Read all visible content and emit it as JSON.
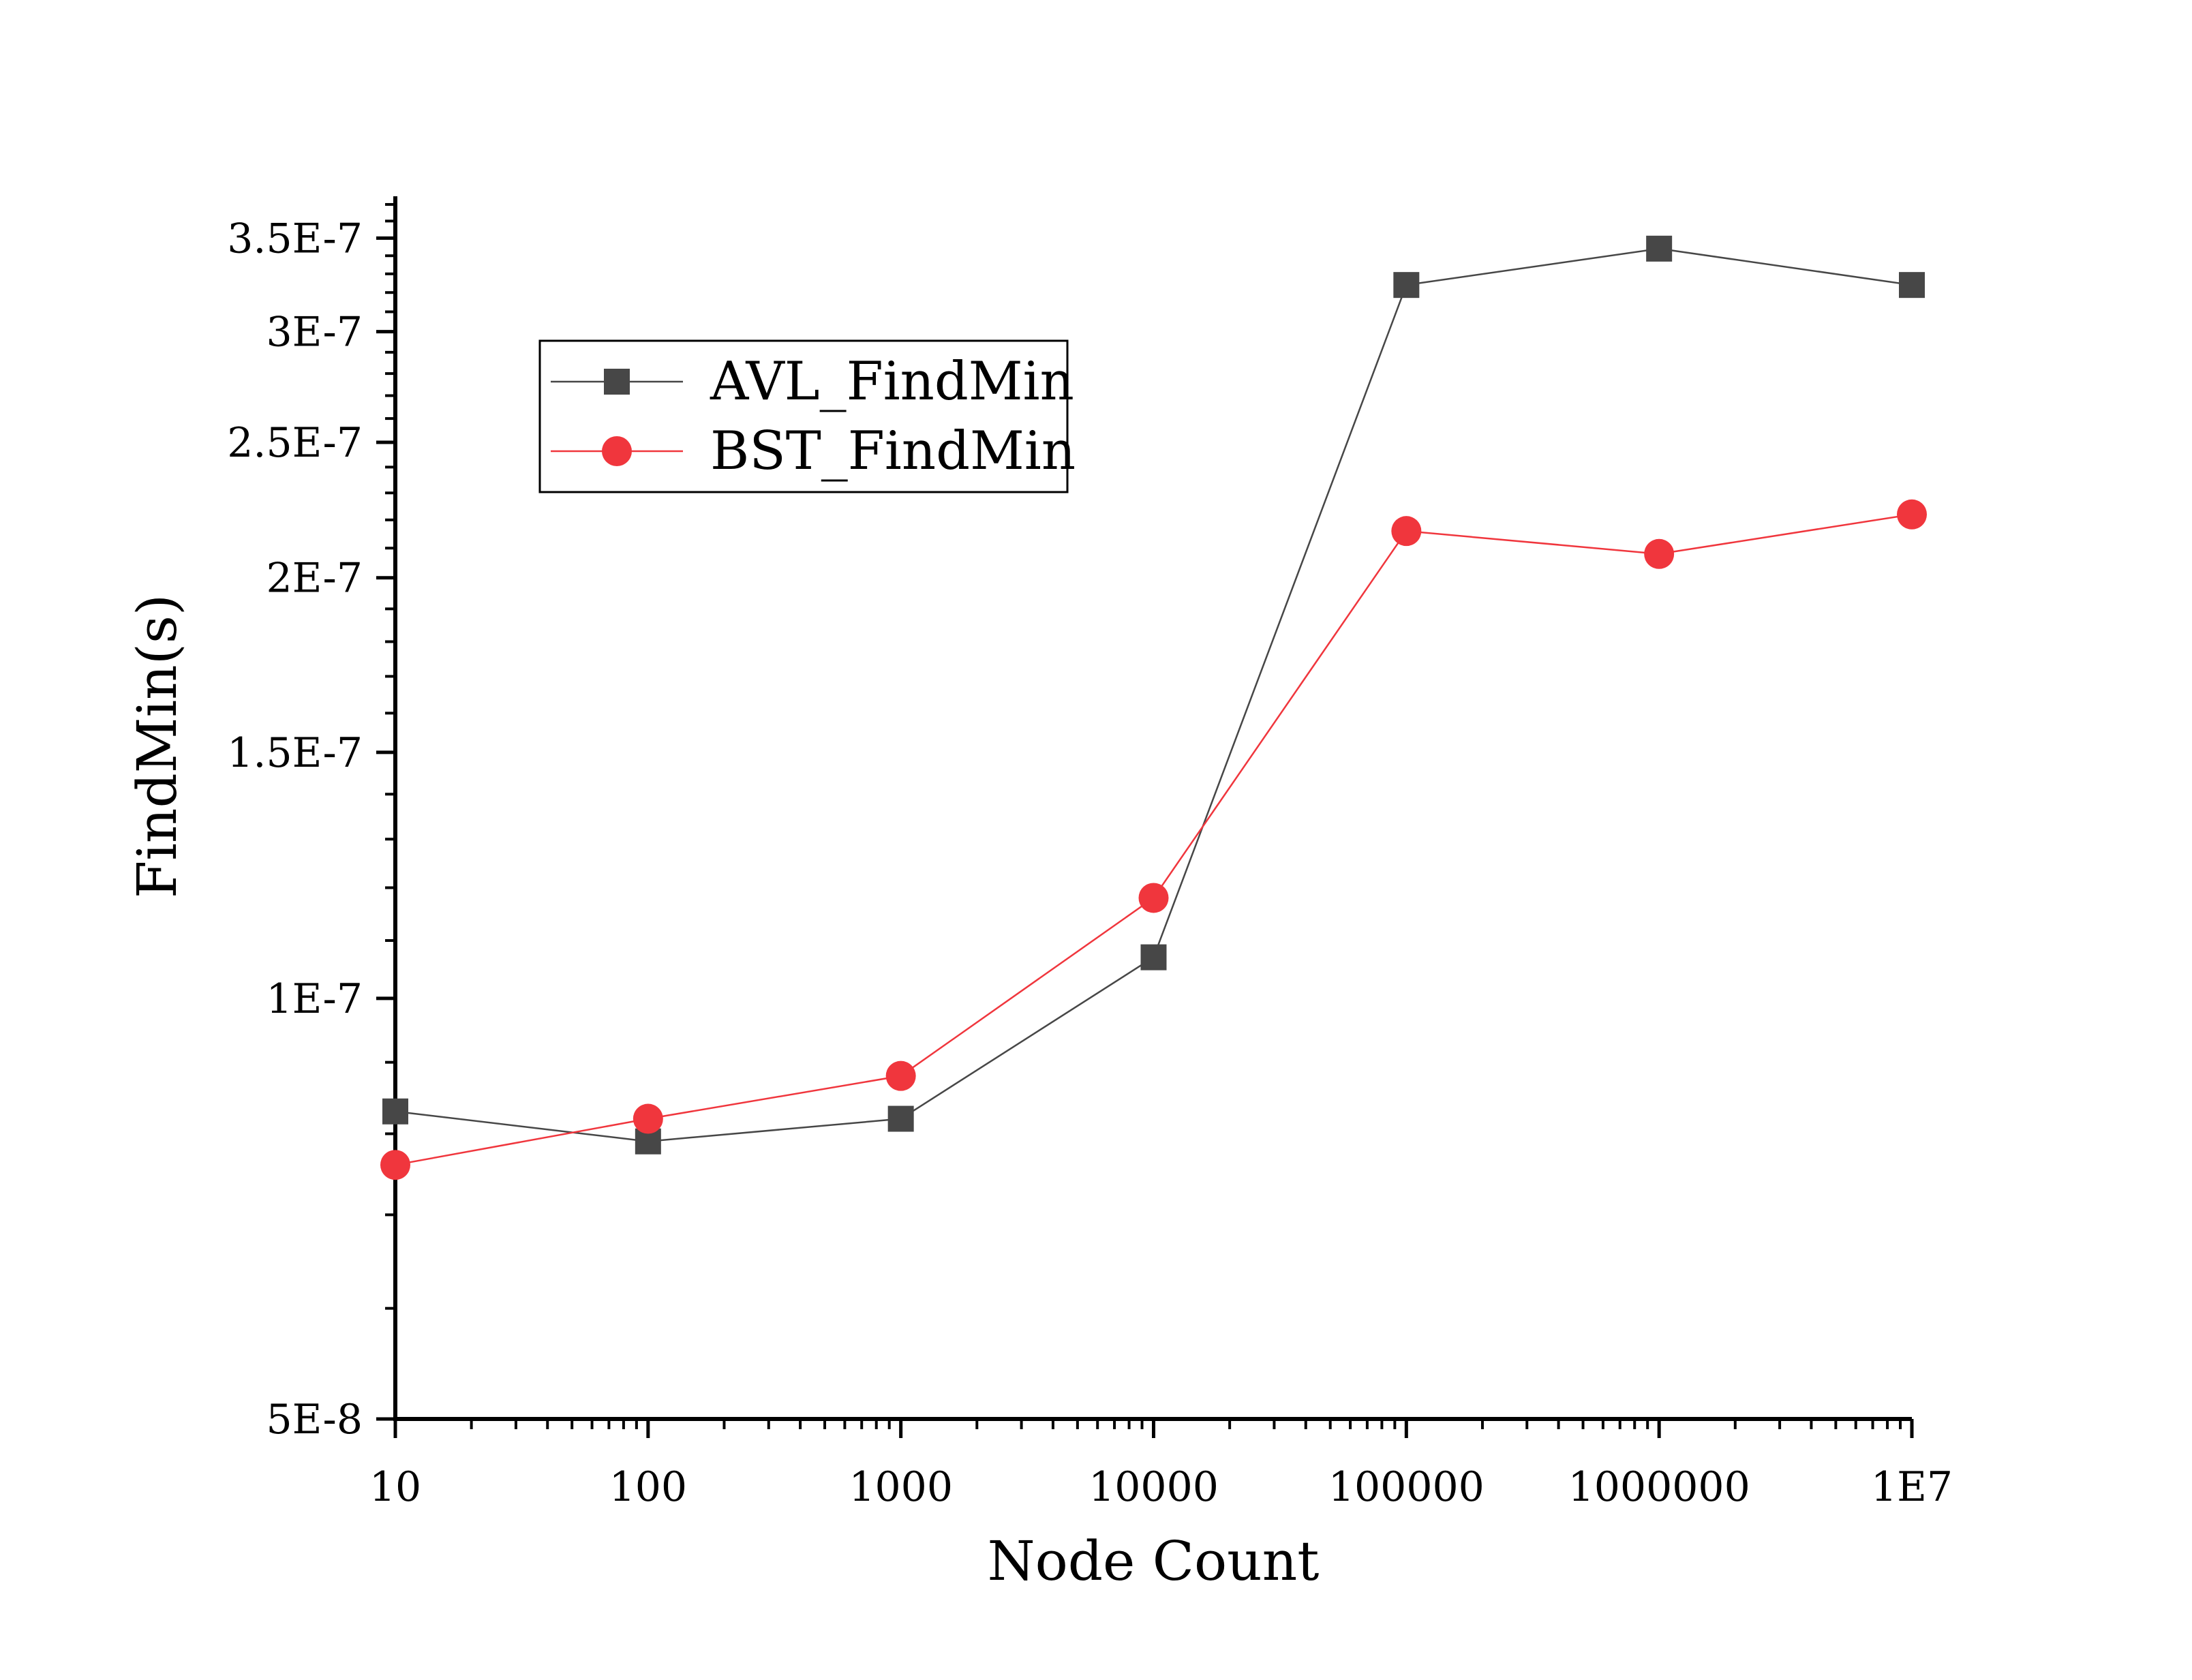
{
  "chart_data": {
    "type": "line",
    "title": "",
    "xlabel": "Node Count",
    "ylabel": "FindMin(s)",
    "x_scale": "log",
    "y_scale": "log",
    "xlim": [
      10,
      10000000
    ],
    "ylim": [
      5e-08,
      3.75e-07
    ],
    "x": [
      10,
      100,
      1000,
      10000,
      100000,
      1000000,
      10000000
    ],
    "x_tick_labels": [
      {
        "value": 10,
        "label": "10"
      },
      {
        "value": 100,
        "label": "100"
      },
      {
        "value": 1000,
        "label": "1000"
      },
      {
        "value": 10000,
        "label": "10000"
      },
      {
        "value": 100000,
        "label": "100000"
      },
      {
        "value": 1000000,
        "label": "1000000"
      },
      {
        "value": 10000000,
        "label": "1E7"
      }
    ],
    "y_tick_labels": [
      {
        "value": 5e-08,
        "label": "5E-8"
      },
      {
        "value": 1e-07,
        "label": "1E-7"
      },
      {
        "value": 1.5e-07,
        "label": "1.5E-7"
      },
      {
        "value": 2e-07,
        "label": "2E-7"
      },
      {
        "value": 2.5e-07,
        "label": "2.5E-7"
      },
      {
        "value": 3e-07,
        "label": "3E-7"
      },
      {
        "value": 3.5e-07,
        "label": "3.5E-7"
      }
    ],
    "series": [
      {
        "name": "AVL_FindMin",
        "color": "#474747",
        "marker": "square",
        "values": [
          8.3e-08,
          7.9e-08,
          8.2e-08,
          1.07e-07,
          3.24e-07,
          3.44e-07,
          3.24e-07
        ]
      },
      {
        "name": "BST_FindMin",
        "color": "#f0363d",
        "marker": "circle",
        "values": [
          7.6e-08,
          8.2e-08,
          8.8e-08,
          1.18e-07,
          2.16e-07,
          2.08e-07,
          2.22e-07
        ]
      }
    ],
    "legend": {
      "position": "top-left"
    },
    "grid": false
  }
}
